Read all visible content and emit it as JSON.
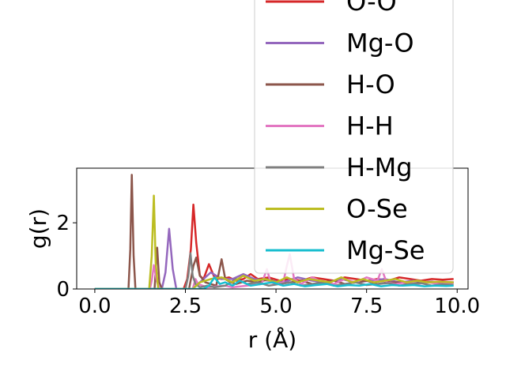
{
  "chart_data": {
    "type": "line",
    "title": "",
    "xlabel": "r (Å)",
    "ylabel": "g(r)",
    "xlim": [
      -0.5,
      10.3
    ],
    "ylim": [
      0,
      3.65
    ],
    "xticks": [
      0.0,
      2.5,
      5.0,
      7.5,
      10.0
    ],
    "xtick_labels": [
      "0.0",
      "2.5",
      "5.0",
      "7.5",
      "10.0"
    ],
    "yticks": [
      0,
      2
    ],
    "ytick_labels": [
      "0",
      "2"
    ],
    "grid": false,
    "legend_position": "top-right",
    "series": [
      {
        "name": "O-O",
        "color": "#d62728",
        "x": [
          0,
          2.45,
          2.55,
          2.65,
          2.72,
          2.8,
          2.9,
          3.0,
          3.15,
          3.3,
          3.5,
          3.7,
          3.9,
          4.1,
          4.3,
          4.5,
          4.8,
          5.1,
          5.4,
          5.7,
          6.0,
          6.3,
          6.6,
          6.9,
          7.2,
          7.5,
          7.8,
          8.1,
          8.4,
          8.7,
          9.0,
          9.3,
          9.6,
          9.9
        ],
        "y": [
          0,
          0,
          0.3,
          1.2,
          2.55,
          1.4,
          0.4,
          0.3,
          0.75,
          0.35,
          0.3,
          0.35,
          0.25,
          0.3,
          0.45,
          0.3,
          0.35,
          0.25,
          0.3,
          0.25,
          0.35,
          0.3,
          0.25,
          0.35,
          0.3,
          0.25,
          0.3,
          0.25,
          0.35,
          0.3,
          0.25,
          0.3,
          0.28,
          0.3
        ]
      },
      {
        "name": "Mg-O",
        "color": "#9467bd",
        "x": [
          0,
          1.85,
          1.95,
          2.05,
          2.15,
          2.25,
          2.7,
          2.9,
          3.2,
          3.5,
          3.8,
          4.1,
          4.4,
          4.8,
          5.2,
          5.6,
          6.0,
          6.4,
          6.8,
          7.2,
          7.6,
          8.0,
          8.4,
          8.8,
          9.2,
          9.6,
          9.9
        ],
        "y": [
          0,
          0,
          0.5,
          1.82,
          0.6,
          0,
          0,
          0.2,
          0.5,
          0.3,
          0.3,
          0.45,
          0.3,
          0.25,
          0.2,
          0.35,
          0.25,
          0.2,
          0.3,
          0.2,
          0.25,
          0.3,
          0.2,
          0.25,
          0.2,
          0.22,
          0.2
        ]
      },
      {
        "name": "H-O",
        "color": "#8c564b",
        "x": [
          0,
          0.93,
          0.98,
          1.02,
          1.07,
          1.12,
          1.65,
          1.72,
          1.78,
          1.85,
          2.6,
          2.72,
          2.8,
          2.9,
          3.05,
          3.35,
          3.5,
          3.6,
          3.75,
          3.9,
          4.2,
          4.5,
          4.8,
          5.1,
          5.4,
          5.7,
          6.0,
          6.3,
          6.6,
          6.9,
          7.2,
          7.5,
          7.8,
          8.1,
          8.4,
          8.7,
          9.0,
          9.3,
          9.6,
          9.9
        ],
        "y": [
          0,
          0,
          1.2,
          3.45,
          1.0,
          0,
          0,
          1.25,
          0.2,
          0,
          0,
          0.7,
          0.95,
          0.4,
          0.2,
          0.1,
          0.9,
          0.3,
          0.2,
          0.15,
          0.25,
          0.2,
          0.3,
          0.15,
          0.2,
          0.25,
          0.15,
          0.2,
          0.25,
          0.15,
          0.2,
          0.25,
          0.15,
          0.2,
          0.2,
          0.15,
          0.2,
          0.22,
          0.18,
          0.2
        ]
      },
      {
        "name": "H-H",
        "color": "#e377c2",
        "x": [
          0,
          1.52,
          1.58,
          1.63,
          1.7,
          1.78,
          2.7,
          2.78,
          2.85,
          3.1,
          3.6,
          3.8,
          4.2,
          4.6,
          4.75,
          4.85,
          5.0,
          5.2,
          5.3,
          5.38,
          5.5,
          5.7,
          6.0,
          6.3,
          6.6,
          6.9,
          7.2,
          7.5,
          7.8,
          7.92,
          8.05,
          8.3,
          8.6,
          8.9,
          9.2,
          9.5,
          9.9
        ],
        "y": [
          0,
          0,
          0.3,
          0.72,
          0.3,
          0,
          0,
          0.3,
          0.15,
          0.05,
          0.1,
          0.05,
          0.1,
          0.15,
          0.6,
          0.2,
          0.15,
          0.2,
          0.7,
          1.05,
          0.3,
          0.15,
          0.35,
          0.2,
          0.15,
          0.3,
          0.2,
          0.35,
          0.25,
          0.6,
          0.2,
          0.15,
          0.2,
          0.15,
          0.2,
          0.15,
          0.18
        ]
      },
      {
        "name": "H-Mg",
        "color": "#7f7f7f",
        "x": [
          0,
          2.5,
          2.58,
          2.64,
          2.7,
          2.78,
          2.9,
          3.1,
          3.3,
          3.6,
          3.9,
          4.2,
          4.5,
          4.8,
          5.1,
          5.4,
          5.7,
          6.0,
          6.3,
          6.6,
          6.9,
          7.2,
          7.5,
          7.8,
          8.1,
          8.4,
          8.7,
          9.0,
          9.3,
          9.6,
          9.9
        ],
        "y": [
          0,
          0,
          0.4,
          1.08,
          0.4,
          0.15,
          0.05,
          0.1,
          0.05,
          0.1,
          0.3,
          0.15,
          0.2,
          0.1,
          0.15,
          0.2,
          0.1,
          0.15,
          0.2,
          0.1,
          0.15,
          0.2,
          0.12,
          0.15,
          0.18,
          0.1,
          0.15,
          0.18,
          0.1,
          0.14,
          0.12
        ]
      },
      {
        "name": "O-Se",
        "color": "#bcbd22",
        "x": [
          0,
          1.5,
          1.57,
          1.63,
          1.68,
          1.75,
          2.7,
          2.9,
          3.2,
          3.5,
          3.8,
          4.1,
          4.4,
          4.7,
          5.0,
          5.3,
          5.6,
          5.9,
          6.2,
          6.5,
          6.8,
          7.1,
          7.4,
          7.7,
          8.0,
          8.3,
          8.6,
          8.9,
          9.2,
          9.5,
          9.9
        ],
        "y": [
          0,
          0,
          1.0,
          2.82,
          0.8,
          0,
          0,
          0.2,
          0.3,
          0.35,
          0.2,
          0.4,
          0.25,
          0.3,
          0.2,
          0.35,
          0.2,
          0.3,
          0.25,
          0.2,
          0.35,
          0.2,
          0.3,
          0.2,
          0.25,
          0.3,
          0.2,
          0.25,
          0.2,
          0.22,
          0.2
        ]
      },
      {
        "name": "Mg-Se",
        "color": "#17becf",
        "x": [
          0,
          3.0,
          3.15,
          3.3,
          3.45,
          3.6,
          3.8,
          4.0,
          4.3,
          4.6,
          4.9,
          5.2,
          5.5,
          5.8,
          6.1,
          6.4,
          6.7,
          7.0,
          7.3,
          7.6,
          7.9,
          8.2,
          8.5,
          8.8,
          9.1,
          9.4,
          9.7,
          9.9
        ],
        "y": [
          0,
          0,
          0.1,
          0.35,
          0.15,
          0.2,
          0.1,
          0.25,
          0.1,
          0.15,
          0.2,
          0.1,
          0.15,
          0.08,
          0.12,
          0.15,
          0.08,
          0.12,
          0.1,
          0.15,
          0.08,
          0.12,
          0.1,
          0.12,
          0.08,
          0.1,
          0.09,
          0.1
        ]
      }
    ]
  }
}
